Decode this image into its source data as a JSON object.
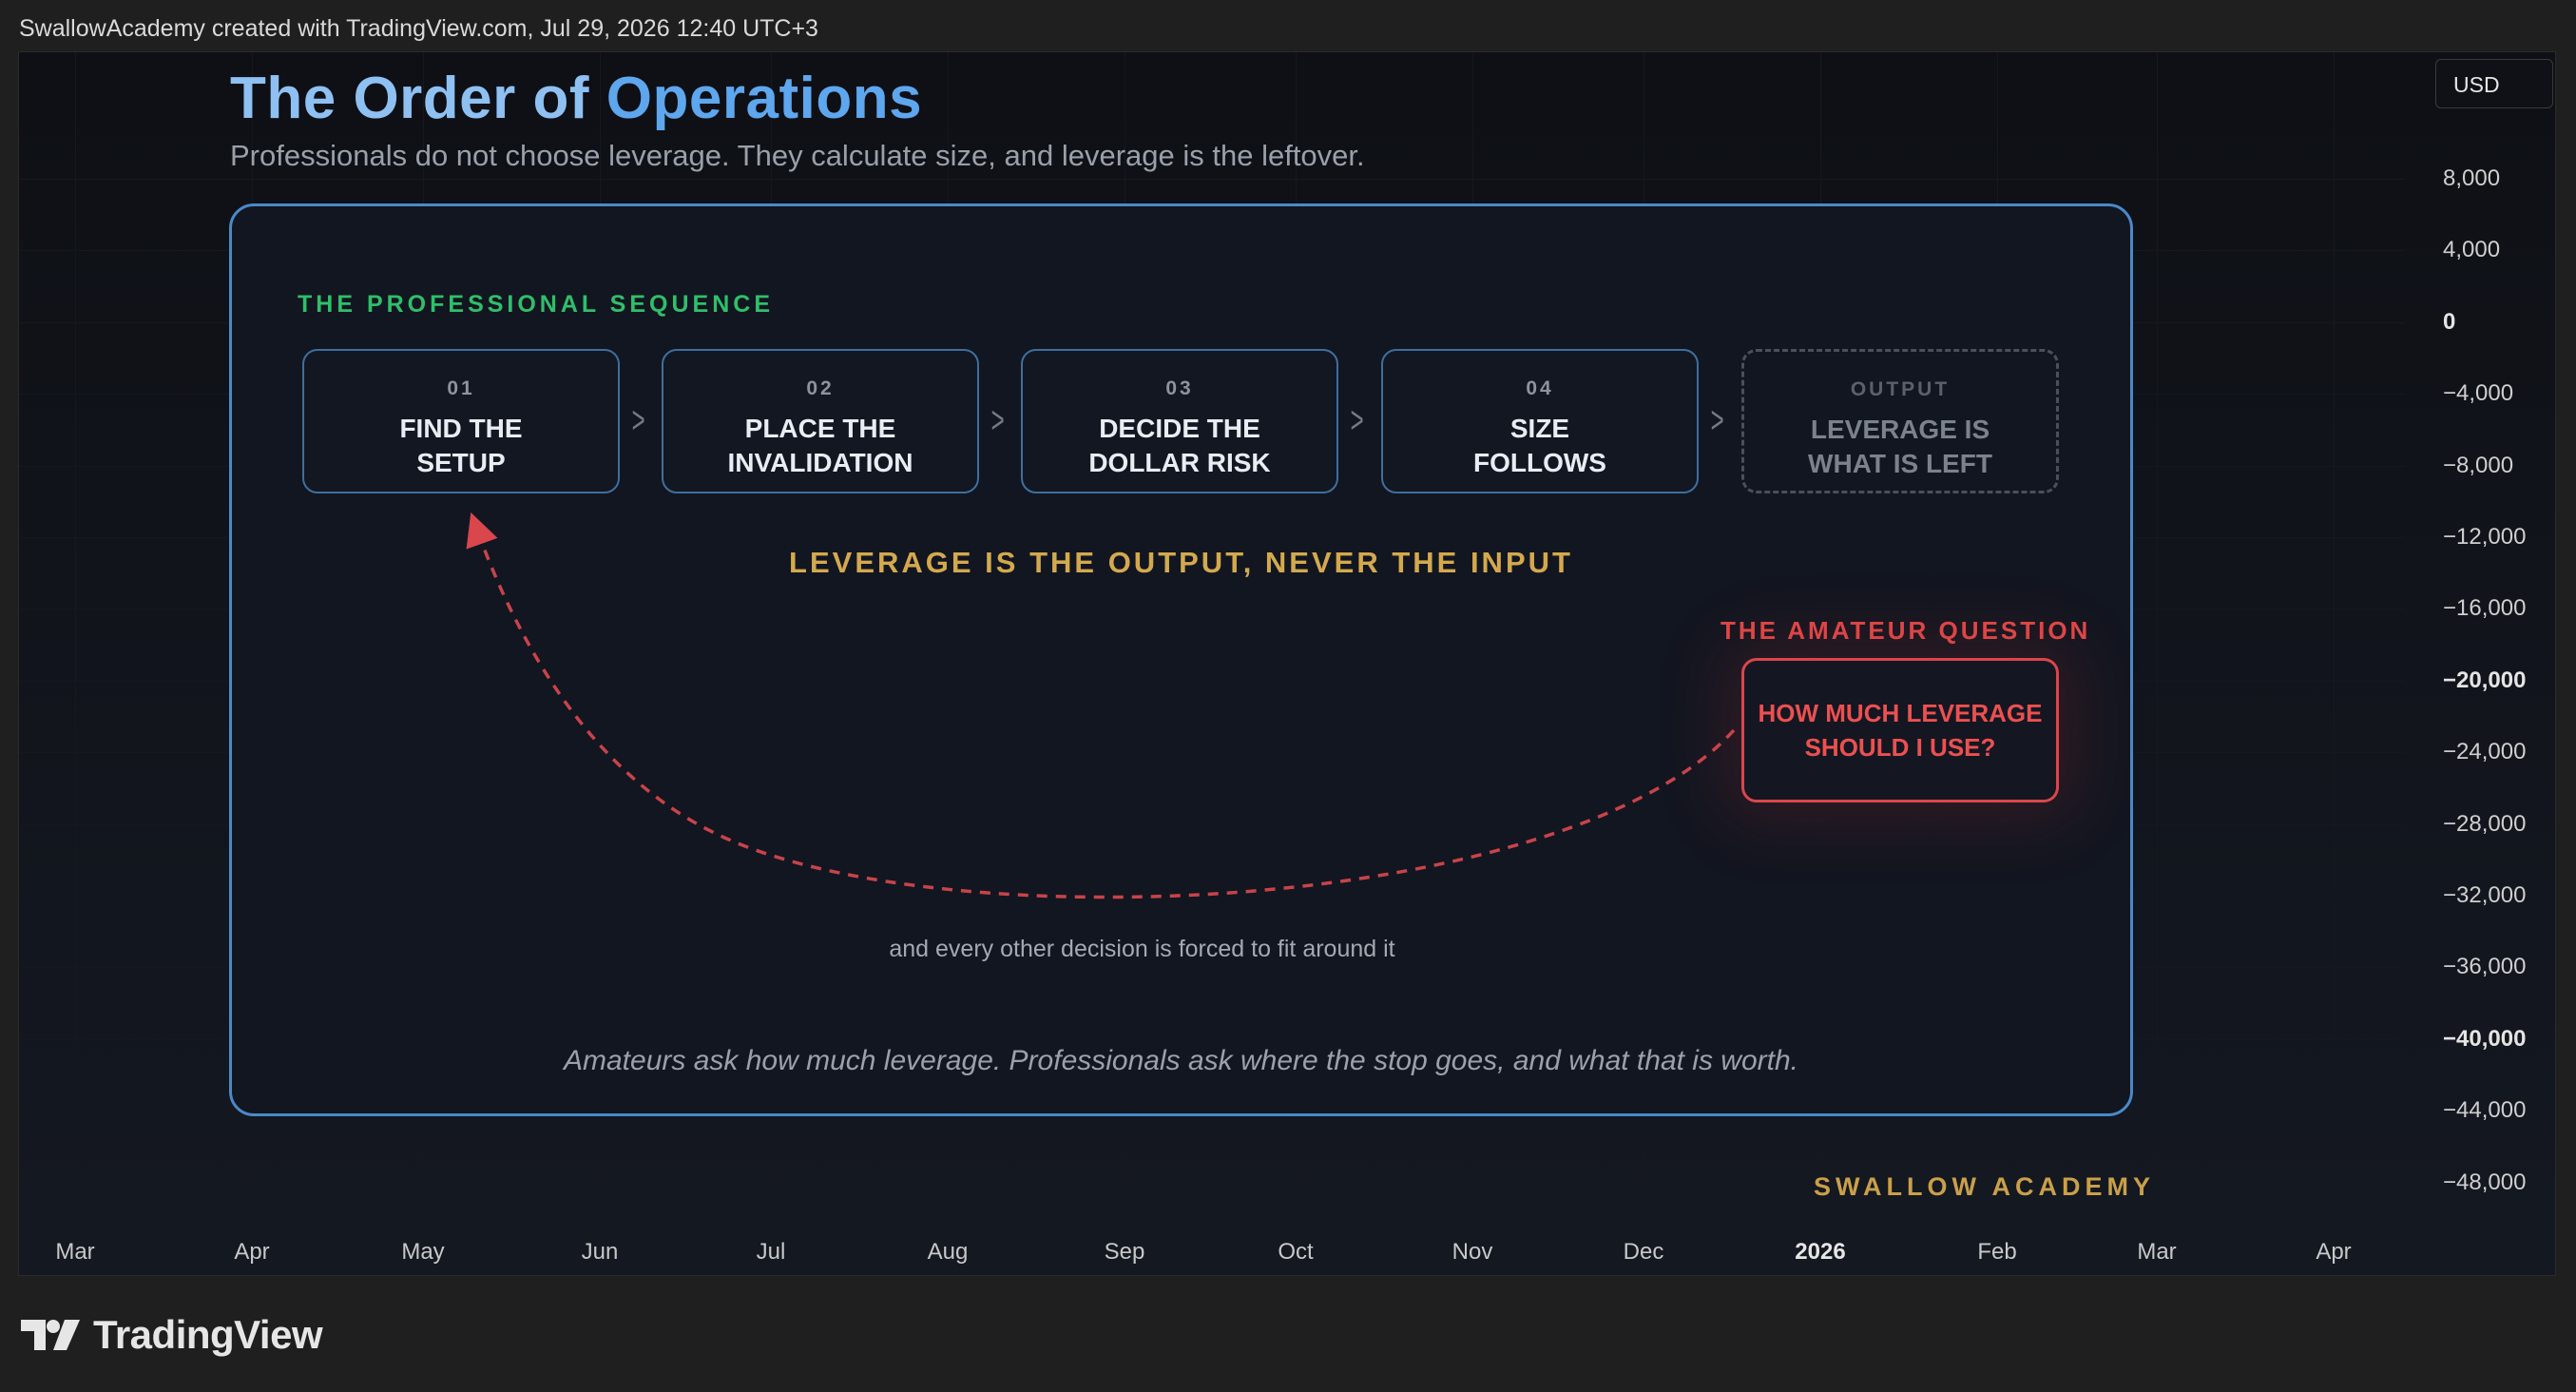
{
  "header": {
    "attribution": "SwallowAcademy created with TradingView.com, Jul 29, 2026 12:40 UTC+3"
  },
  "price_scale": {
    "currency": "USD",
    "labels": [
      {
        "text": "8,000",
        "bold": false
      },
      {
        "text": "4,000",
        "bold": false
      },
      {
        "text": "0",
        "bold": true
      },
      {
        "text": "−4,000",
        "bold": false
      },
      {
        "text": "−8,000",
        "bold": false
      },
      {
        "text": "−12,000",
        "bold": false
      },
      {
        "text": "−16,000",
        "bold": false
      },
      {
        "text": "−20,000",
        "bold": true
      },
      {
        "text": "−24,000",
        "bold": false
      },
      {
        "text": "−28,000",
        "bold": false
      },
      {
        "text": "−32,000",
        "bold": false
      },
      {
        "text": "−36,000",
        "bold": false
      },
      {
        "text": "−40,000",
        "bold": true
      },
      {
        "text": "−44,000",
        "bold": false
      },
      {
        "text": "−48,000",
        "bold": false
      }
    ]
  },
  "time_scale": {
    "labels": [
      {
        "text": "Mar",
        "bold": false
      },
      {
        "text": "Apr",
        "bold": false
      },
      {
        "text": "May",
        "bold": false
      },
      {
        "text": "Jun",
        "bold": false
      },
      {
        "text": "Jul",
        "bold": false
      },
      {
        "text": "Aug",
        "bold": false
      },
      {
        "text": "Sep",
        "bold": false
      },
      {
        "text": "Oct",
        "bold": false
      },
      {
        "text": "Nov",
        "bold": false
      },
      {
        "text": "Dec",
        "bold": false
      },
      {
        "text": "2026",
        "bold": true
      },
      {
        "text": "Feb",
        "bold": false
      },
      {
        "text": "Mar",
        "bold": false
      },
      {
        "text": "Apr",
        "bold": false
      }
    ]
  },
  "infographic": {
    "title_part1": "The Order of",
    "title_part2": "Operations",
    "subtitle": "Professionals do not choose leverage. They calculate size, and leverage is the leftover.",
    "sequence_heading": "THE PROFESSIONAL SEQUENCE",
    "steps": [
      {
        "number": "01",
        "label": "FIND THE\nSETUP"
      },
      {
        "number": "02",
        "label": "PLACE THE\nINVALIDATION"
      },
      {
        "number": "03",
        "label": "DECIDE THE\nDOLLAR RISK"
      },
      {
        "number": "04",
        "label": "SIZE\nFOLLOWS"
      },
      {
        "number": "OUTPUT",
        "label": "LEVERAGE IS\nWHAT IS LEFT"
      }
    ],
    "tagline": "LEVERAGE IS THE OUTPUT, NEVER THE INPUT",
    "amateur_heading": "THE AMATEUR QUESTION",
    "amateur_question": "HOW MUCH LEVERAGE\nSHOULD I USE?",
    "note": "and every other decision is forced to fit around it",
    "quote": "Amateurs ask how much leverage. Professionals ask where the stop goes, and what that is worth.",
    "brand": "SWALLOW ACADEMY"
  },
  "footer": {
    "logo_text": "TradingView"
  },
  "colors": {
    "title_light": "#8ec0f2",
    "title_accent": "#5ea6ee",
    "sequence_green": "#2fbf6a",
    "tagline_gold": "#d4a94e",
    "amateur_red": "#e04848",
    "card_border_blue": "#4a89c9"
  },
  "icons": {
    "step_separator": "chevron-right-icon",
    "curve_arrow": "dashed-arrow-icon",
    "logo": "tradingview-logo-icon"
  }
}
